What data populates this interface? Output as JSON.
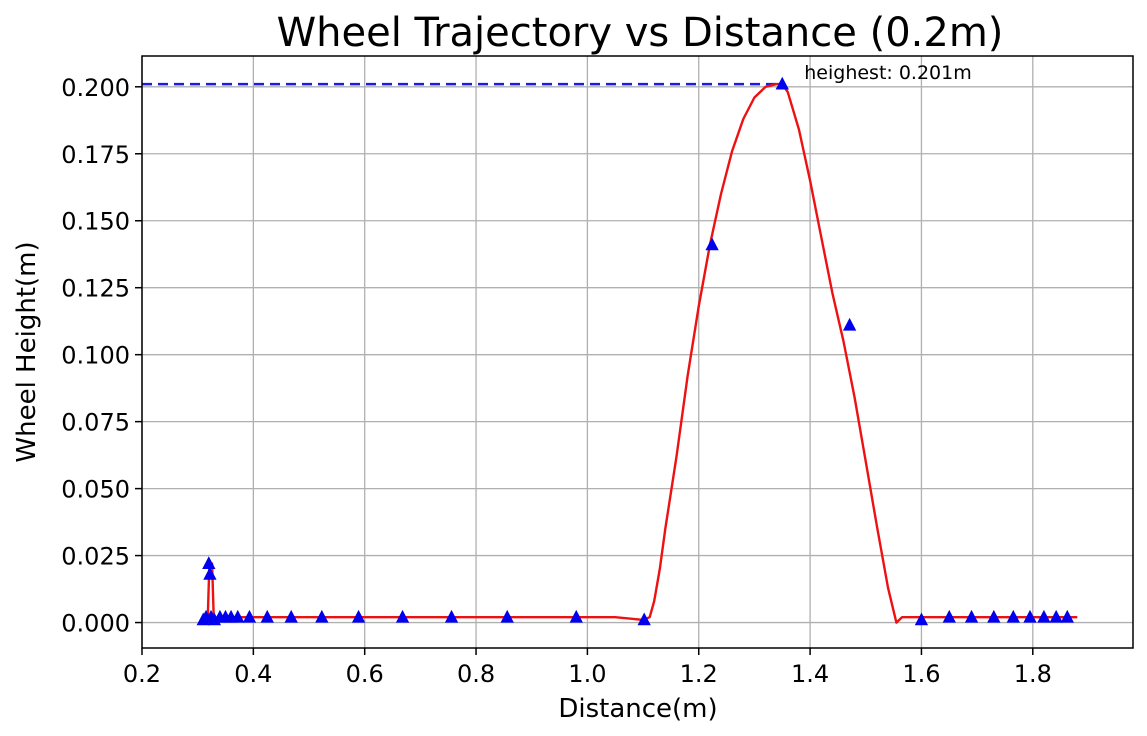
{
  "chart_data": {
    "type": "line",
    "title": "Wheel Trajectory vs Distance (0.2m)",
    "xlabel": "Distance(m)",
    "ylabel": "Wheel Height(m)",
    "xlim": [
      0.2,
      1.98
    ],
    "ylim": [
      -0.0095,
      0.2115
    ],
    "x_ticks": [
      0.2,
      0.4,
      0.6,
      0.8,
      1.0,
      1.2,
      1.4,
      1.6,
      1.8
    ],
    "x_tick_labels": [
      "0.2",
      "0.4",
      "0.6",
      "0.8",
      "1.0",
      "1.2",
      "1.4",
      "1.6",
      "1.8"
    ],
    "y_ticks": [
      0.0,
      0.025,
      0.05,
      0.075,
      0.1,
      0.125,
      0.15,
      0.175,
      0.2
    ],
    "y_tick_labels": [
      "0.000",
      "0.025",
      "0.050",
      "0.075",
      "0.100",
      "0.125",
      "0.150",
      "0.175",
      "0.200"
    ],
    "grid": true,
    "colors": {
      "trajectory": "#ee1111",
      "markers": "#0000ee",
      "highest_line": "#1a1aee"
    },
    "series": [
      {
        "style": "line",
        "x": [
          0.31,
          0.318,
          0.321,
          0.323,
          0.326,
          0.329,
          0.35,
          0.5,
          0.8,
          1.05,
          1.1,
          1.112,
          1.12,
          1.13,
          1.14,
          1.16,
          1.18,
          1.2,
          1.22,
          1.24,
          1.26,
          1.28,
          1.3,
          1.32,
          1.34,
          1.35,
          1.36,
          1.38,
          1.4,
          1.42,
          1.44,
          1.46,
          1.48,
          1.5,
          1.52,
          1.54,
          1.555,
          1.565,
          1.58,
          1.6,
          1.7,
          1.8,
          1.88
        ],
        "y": [
          0.001,
          0.001,
          0.022,
          0.022,
          0.022,
          0.001,
          0.002,
          0.002,
          0.002,
          0.002,
          0.001,
          0.002,
          0.008,
          0.02,
          0.035,
          0.062,
          0.092,
          0.118,
          0.141,
          0.16,
          0.176,
          0.188,
          0.196,
          0.2,
          0.201,
          0.201,
          0.198,
          0.184,
          0.165,
          0.144,
          0.123,
          0.105,
          0.084,
          0.06,
          0.036,
          0.013,
          0.0,
          0.002,
          0.002,
          0.002,
          0.002,
          0.002,
          0.002
        ]
      },
      {
        "style": "markers",
        "x": [
          0.31,
          0.315,
          0.32,
          0.322,
          0.324,
          0.33,
          0.34,
          0.35,
          0.36,
          0.372,
          0.393,
          0.425,
          0.468,
          0.523,
          0.589,
          0.668,
          0.756,
          0.856,
          0.98,
          1.102,
          1.224,
          1.35,
          1.471,
          1.6,
          1.65,
          1.69,
          1.73,
          1.765,
          1.795,
          1.82,
          1.842,
          1.862
        ],
        "y": [
          0.001,
          0.002,
          0.022,
          0.018,
          0.002,
          0.001,
          0.002,
          0.002,
          0.002,
          0.002,
          0.002,
          0.002,
          0.002,
          0.002,
          0.002,
          0.002,
          0.002,
          0.002,
          0.002,
          0.001,
          0.141,
          0.201,
          0.111,
          0.001,
          0.002,
          0.002,
          0.002,
          0.002,
          0.002,
          0.002,
          0.002,
          0.002
        ]
      }
    ],
    "highest": {
      "x": 1.35,
      "y": 0.201,
      "label": "heighest: 0.201m"
    }
  }
}
